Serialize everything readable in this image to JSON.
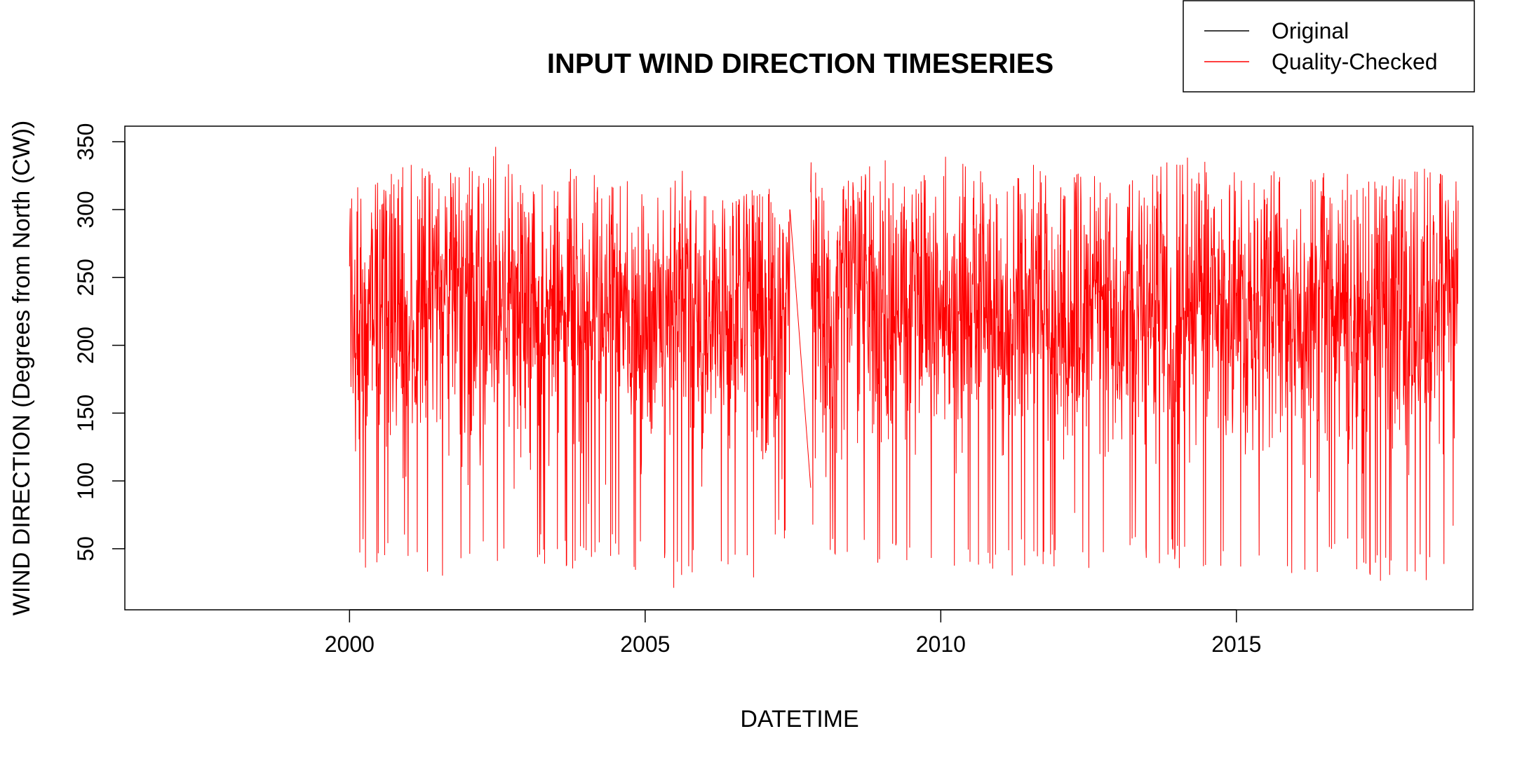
{
  "chart_data": {
    "type": "line",
    "title": "INPUT WIND DIRECTION TIMESERIES",
    "xlabel": "DATETIME",
    "ylabel": "WIND DIRECTION (Degrees from North (CW))",
    "xlim": [
      1996.2,
      2019.0
    ],
    "ylim": [
      5.0,
      361.5
    ],
    "x_ticks": [
      2000,
      2005,
      2010,
      2015
    ],
    "x_tick_labels": [
      "2000",
      "2005",
      "2010",
      "2015"
    ],
    "y_ticks": [
      50,
      100,
      150,
      200,
      250,
      300,
      350
    ],
    "y_tick_labels": [
      "50",
      "100",
      "150",
      "200",
      "250",
      "300",
      "350"
    ],
    "grid": false,
    "legend": {
      "position": "top-right",
      "entries": [
        {
          "label": "Original",
          "color": "#000000"
        },
        {
          "label": "Quality-Checked",
          "color": "#ff0000"
        }
      ]
    },
    "gap": {
      "from": 2007.45,
      "to": 2007.8,
      "y_start": 300,
      "y_end": 95
    },
    "segments": [
      {
        "start": 2000.0,
        "end": 2007.45
      },
      {
        "start": 2007.8,
        "end": 2018.75
      }
    ],
    "envelope": {
      "x": [
        2000.0,
        2000.5,
        2001.0,
        2001.5,
        2002.0,
        2002.5,
        2003.0,
        2003.5,
        2004.0,
        2004.5,
        2005.0,
        2005.5,
        2006.0,
        2006.5,
        2007.0,
        2007.45,
        2007.8,
        2008.0,
        2008.5,
        2009.0,
        2009.5,
        2010.0,
        2010.5,
        2011.0,
        2011.5,
        2012.0,
        2012.5,
        2013.0,
        2013.5,
        2014.0,
        2014.5,
        2015.0,
        2015.5,
        2016.0,
        2016.5,
        2017.0,
        2017.5,
        2018.0,
        2018.5,
        2018.75
      ],
      "max": [
        315,
        320,
        335,
        325,
        330,
        350,
        320,
        330,
        330,
        315,
        330,
        335,
        310,
        305,
        320,
        300,
        335,
        330,
        320,
        340,
        310,
        345,
        330,
        325,
        335,
        320,
        330,
        320,
        325,
        340,
        335,
        330,
        320,
        350,
        330,
        325,
        320,
        335,
        325,
        320
      ],
      "min": [
        35,
        30,
        40,
        25,
        30,
        35,
        40,
        35,
        30,
        40,
        30,
        20,
        35,
        25,
        30,
        60,
        50,
        45,
        40,
        30,
        35,
        25,
        30,
        20,
        40,
        35,
        30,
        30,
        40,
        35,
        30,
        35,
        40,
        25,
        30,
        35,
        25,
        20,
        35,
        60
      ]
    },
    "series": [
      {
        "name": "Original",
        "color": "#000000"
      },
      {
        "name": "Quality-Checked",
        "color": "#ff0000"
      }
    ]
  }
}
